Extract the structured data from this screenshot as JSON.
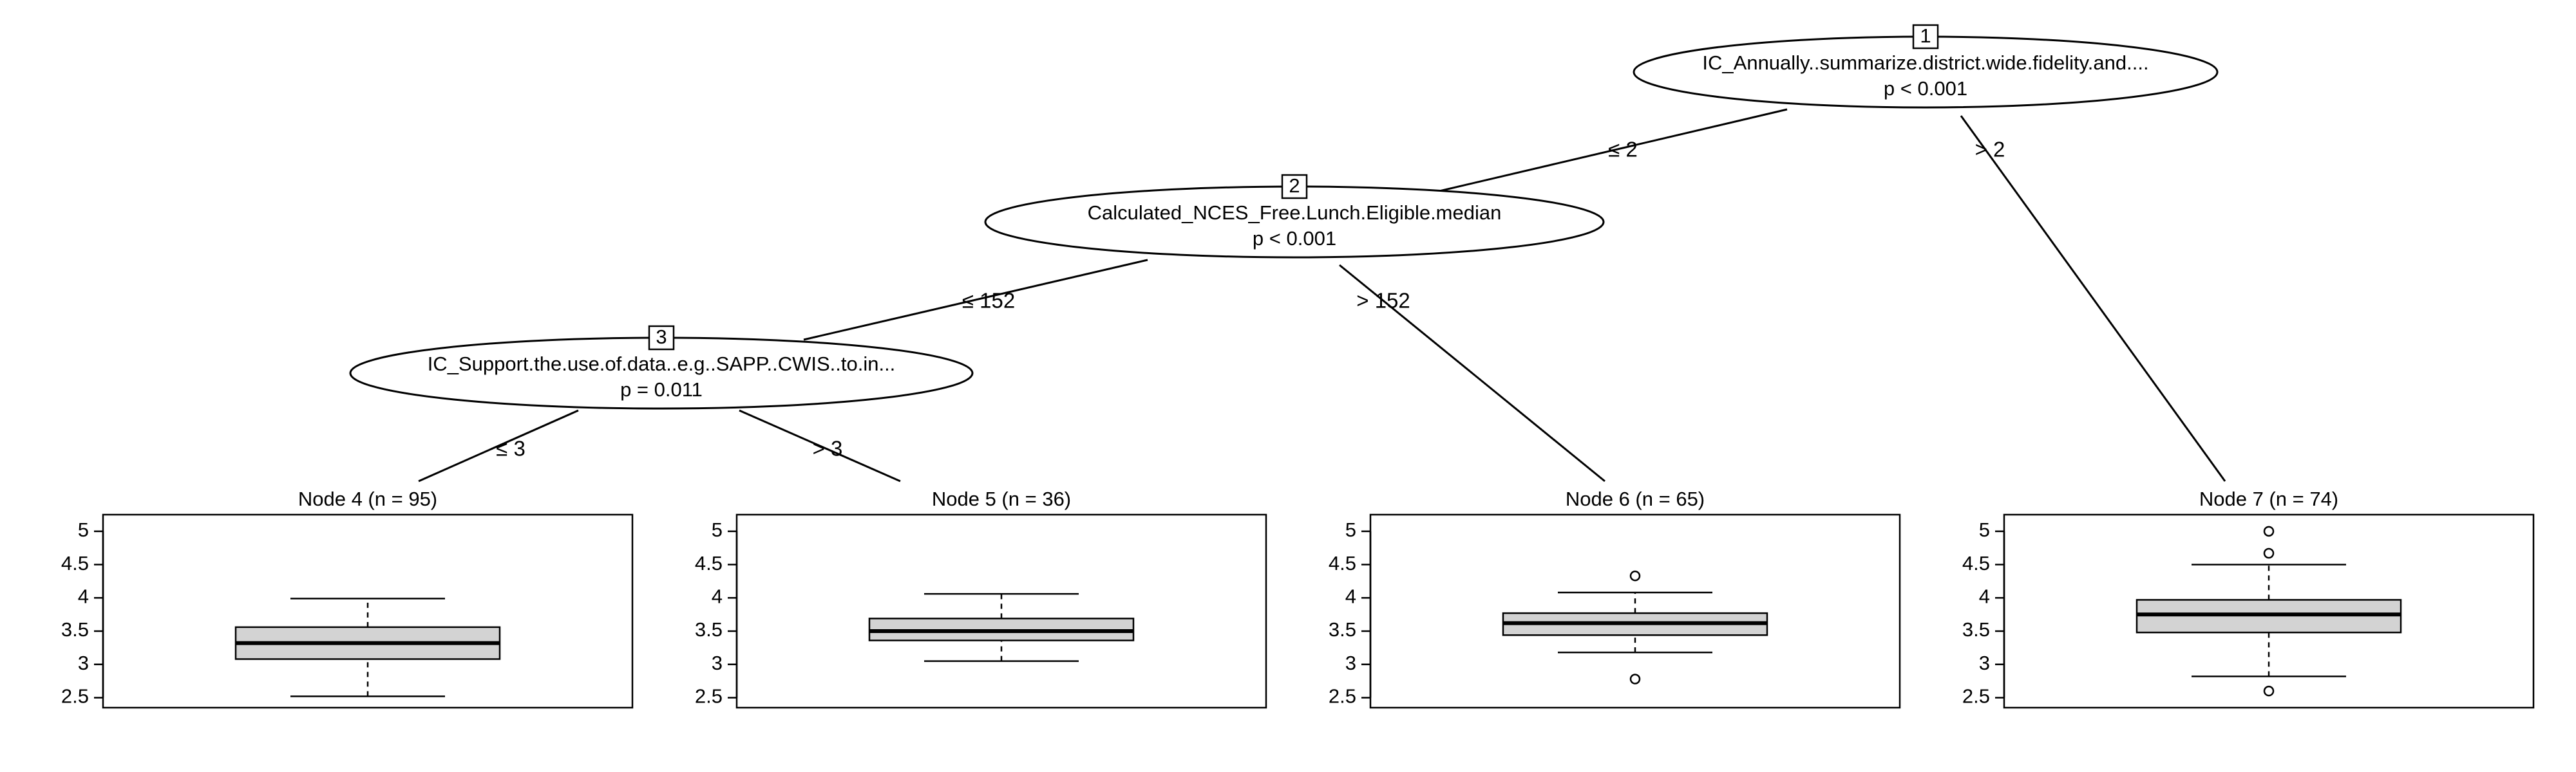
{
  "inner_nodes": [
    {
      "id": "1",
      "variable": "IC_Annually..summarize.district.wide.fidelity.and....",
      "p_value": "p < 0.001"
    },
    {
      "id": "2",
      "variable": "Calculated_NCES_Free.Lunch.Eligible.median",
      "p_value": "p < 0.001"
    },
    {
      "id": "3",
      "variable": "IC_Support.the.use.of.data..e.g..SAPP..CWIS..to.in...",
      "p_value": "p = 0.011"
    }
  ],
  "edges": [
    {
      "from": "1",
      "to": "2",
      "label": "≤ 2"
    },
    {
      "from": "1",
      "to": "7",
      "label": "> 2"
    },
    {
      "from": "2",
      "to": "3",
      "label": "≤ 152"
    },
    {
      "from": "2",
      "to": "6",
      "label": "> 152"
    },
    {
      "from": "3",
      "to": "4",
      "label": "≤ 3"
    },
    {
      "from": "3",
      "to": "5",
      "label": "> 3"
    }
  ],
  "y_axis": {
    "ticks": [
      "2.5",
      "3",
      "3.5",
      "4",
      "4.5",
      "5"
    ],
    "range": [
      2.35,
      5.25
    ]
  },
  "terminal_nodes": [
    {
      "id": "4",
      "title": "Node 4 (n = 95)",
      "whisker_low": 2.52,
      "q1": 3.08,
      "median": 3.32,
      "q3": 3.56,
      "whisker_high": 3.99,
      "outliers": []
    },
    {
      "id": "5",
      "title": "Node 5 (n = 36)",
      "whisker_low": 3.05,
      "q1": 3.36,
      "median": 3.5,
      "q3": 3.69,
      "whisker_high": 4.06,
      "outliers": []
    },
    {
      "id": "6",
      "title": "Node 6 (n = 65)",
      "whisker_low": 3.18,
      "q1": 3.44,
      "median": 3.62,
      "q3": 3.77,
      "whisker_high": 4.08,
      "outliers": [
        4.33,
        2.78
      ]
    },
    {
      "id": "7",
      "title": "Node 7 (n = 74)",
      "whisker_low": 2.82,
      "q1": 3.48,
      "median": 3.75,
      "q3": 3.97,
      "whisker_high": 4.5,
      "outliers": [
        5.0,
        4.67,
        2.6
      ]
    }
  ]
}
